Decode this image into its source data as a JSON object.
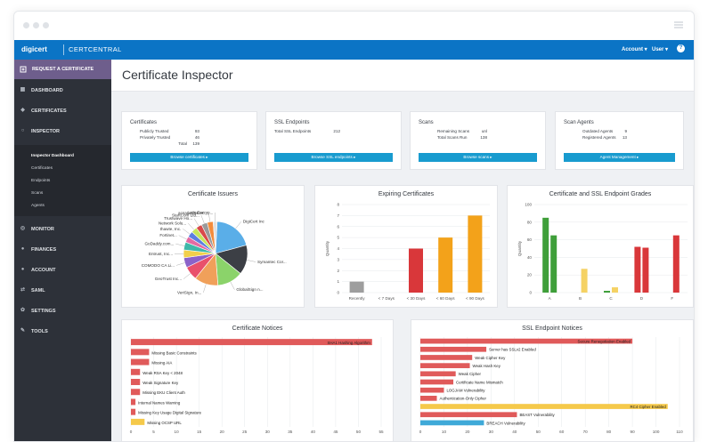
{
  "brand": {
    "logo": "digicert",
    "product": "CERTCENTRAL"
  },
  "topnav": {
    "account": "Account ▾",
    "user": "User ▾",
    "help": "?"
  },
  "sidebar": {
    "request": "REQUEST A CERTIFICATE",
    "items": [
      {
        "label": "DASHBOARD",
        "icon": "dashboard-icon"
      },
      {
        "label": "CERTIFICATES",
        "icon": "certificate-icon"
      },
      {
        "label": "INSPECTOR",
        "icon": "search-icon"
      },
      {
        "label": "MONITOR",
        "icon": "monitor-icon"
      },
      {
        "label": "FINANCES",
        "icon": "finances-icon"
      },
      {
        "label": "ACCOUNT",
        "icon": "account-icon"
      },
      {
        "label": "SAML",
        "icon": "saml-icon"
      },
      {
        "label": "SETTINGS",
        "icon": "gear-icon"
      },
      {
        "label": "TOOLS",
        "icon": "tools-icon"
      }
    ],
    "sub": [
      "Inspector Dashboard",
      "Certificates",
      "Endpoints",
      "Scans",
      "Agents"
    ]
  },
  "page": {
    "title": "Certificate Inspector"
  },
  "summary": {
    "certificates": {
      "title": "Certificates",
      "rows": [
        [
          "Publicly Trusted",
          "93"
        ],
        [
          "Privately Trusted",
          "46"
        ],
        [
          "Total",
          "139"
        ]
      ],
      "button": "Browse certificates ▸"
    },
    "endpoints": {
      "title": "SSL Endpoints",
      "rows": [
        [
          "Total SSL Endpoints",
          "212"
        ]
      ],
      "button": "Browse SSL endpoints ▸"
    },
    "scans": {
      "title": "Scans",
      "rows": [
        [
          "Remaining Scans",
          "unl"
        ],
        [
          "Total Scans Run",
          "138"
        ]
      ],
      "button": "Browse scans ▸"
    },
    "agents": {
      "title": "Scan Agents",
      "rows": [
        [
          "Outdated Agents",
          "9"
        ],
        [
          "Registered Agents",
          "13"
        ]
      ],
      "button": "Agent Management ▸"
    }
  },
  "chart_data": [
    {
      "type": "pie",
      "title": "Certificate Issuers",
      "categories": [
        "DigiCert Inc",
        "Symantec Cor...",
        "GlobalSign n...",
        "VeriSign, In...",
        "GeoTrust Inc...",
        "COMODO CA Li...",
        "Entrust, Inc...",
        "GoDaddy.com...",
        "Fortinet...",
        "thawte, Inc.",
        "Network Solu...",
        "Trustwave Ho...",
        "StartCom Ltd...",
        "acsacustomer...",
        "Let's Encryp..."
      ],
      "values": [
        20,
        15,
        13,
        12,
        7,
        5,
        4,
        4,
        3,
        3,
        3,
        3,
        3,
        3,
        2
      ],
      "colors": [
        "#5aaee8",
        "#3c3f45",
        "#8bd36a",
        "#f0a05a",
        "#e9506b",
        "#8b62c9",
        "#f2d04a",
        "#3fb8a9",
        "#e46aa2",
        "#5c7ee0",
        "#c7e65a",
        "#d94a4a",
        "#9a9a9a",
        "#f48c3c",
        "#e0e0e0"
      ]
    },
    {
      "type": "bar",
      "title": "Expiring Certificates",
      "categories": [
        "Recently",
        "< 7 Days",
        "< 30 Days",
        "< 60 Days",
        "< 90 Days"
      ],
      "values": [
        1,
        0,
        4,
        5,
        7
      ],
      "colors": [
        "#9e9e9e",
        "#9e9e9e",
        "#d9373a",
        "#f3a21a",
        "#f3a21a"
      ],
      "ylabel": "Quantity",
      "yticks": [
        0,
        1,
        2,
        3,
        4,
        5,
        6,
        7,
        8
      ],
      "ylim": [
        0,
        8
      ]
    },
    {
      "type": "bar",
      "title": "Certificate and SSL Endpoint Grades",
      "categories": [
        "A",
        "B",
        "C",
        "D",
        "F"
      ],
      "series": [
        {
          "values": [
            85,
            0,
            2,
            52,
            0
          ],
          "colors": [
            "#3f9f3a",
            "#3f9f3a",
            "#3f9f3a",
            "#d9373a",
            "#d9373a"
          ]
        },
        {
          "values": [
            65,
            27,
            6,
            51,
            65
          ],
          "colors": [
            "#3f9f3a",
            "#f5d264",
            "#f5d264",
            "#d9373a",
            "#d9373a"
          ]
        }
      ],
      "ylabel": "Quantity",
      "yticks": [
        0,
        20,
        40,
        60,
        80,
        100
      ],
      "ylim": [
        0,
        100
      ]
    },
    {
      "type": "bar",
      "orientation": "horizontal",
      "title": "Certificate Notices",
      "categories": [
        "SHA1 Hashing Algorithm",
        "Missing Basic Constraints",
        "Missing AIA",
        "Weak RSA Key < 2048",
        "Weak Signature Key",
        "Missing EKU Client Auth",
        "Internal Names Warning",
        "Missing Key Usage Digital Signature",
        "Missing OCSP URL"
      ],
      "values": [
        53,
        4,
        4,
        2,
        2,
        2,
        1,
        1,
        3
      ],
      "colors": [
        "#e05a5a",
        "#e05a5a",
        "#e05a5a",
        "#e05a5a",
        "#e05a5a",
        "#e05a5a",
        "#e05a5a",
        "#e05a5a",
        "#f5c94a"
      ],
      "xticks": [
        0,
        5,
        10,
        15,
        20,
        25,
        30,
        35,
        40,
        45,
        50,
        55
      ],
      "xlim": [
        0,
        55
      ]
    },
    {
      "type": "bar",
      "orientation": "horizontal",
      "title": "SSL Endpoint Notices",
      "categories": [
        "Secure Renegotiation Enabled",
        "Server has SSLv2 Enabled",
        "Weak Cipher Key",
        "Weak Hash Key",
        "Weak Cipher",
        "Certificate Name Mismatch",
        "LOGJAM Vulnerability",
        "Authentication-Only Cipher",
        "RC4 Cipher Enabled",
        "BEAST Vulnerability",
        "BREACH Vulnerability"
      ],
      "values": [
        90,
        28,
        22,
        21,
        15,
        14,
        10,
        7,
        105,
        41,
        27
      ],
      "colors": [
        "#e05a5a",
        "#e05a5a",
        "#e05a5a",
        "#e05a5a",
        "#e05a5a",
        "#e05a5a",
        "#e05a5a",
        "#e05a5a",
        "#f5c94a",
        "#e05a5a",
        "#3fa9d8"
      ],
      "xticks": [
        0,
        10,
        20,
        30,
        40,
        50,
        60,
        70,
        80,
        90,
        100,
        110
      ],
      "xlim": [
        0,
        110
      ]
    }
  ]
}
